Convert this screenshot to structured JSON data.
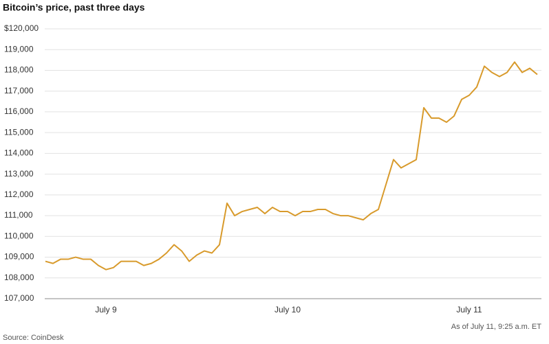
{
  "chart_data": {
    "type": "line",
    "title": "Bitcoin’s price, past three days",
    "note": "As of July 11, 9:25 a.m. ET",
    "source": "Source: CoinDesk",
    "categories": [
      null,
      null,
      null,
      null,
      null,
      null,
      null,
      null,
      "July 9",
      null,
      null,
      null,
      null,
      null,
      null,
      null,
      null,
      null,
      null,
      null,
      null,
      null,
      null,
      null,
      null,
      null,
      null,
      null,
      null,
      null,
      null,
      null,
      "July 10",
      null,
      null,
      null,
      null,
      null,
      null,
      null,
      null,
      null,
      null,
      null,
      null,
      null,
      null,
      null,
      null,
      null,
      null,
      null,
      null,
      null,
      null,
      null,
      "July 11",
      null,
      null,
      null,
      null,
      null,
      null,
      null,
      null,
      null
    ],
    "series": [
      {
        "name": "Bitcoin",
        "color": "#d89a2b",
        "values": [
          108800,
          108700,
          108900,
          108900,
          109000,
          108900,
          108900,
          108600,
          108400,
          108500,
          108800,
          108800,
          108800,
          108600,
          108700,
          108900,
          109200,
          109600,
          109300,
          108800,
          109100,
          109300,
          109200,
          109600,
          111600,
          111000,
          111200,
          111300,
          111400,
          111100,
          111400,
          111200,
          111200,
          111000,
          111200,
          111200,
          111300,
          111300,
          111100,
          111000,
          111000,
          110900,
          110800,
          111100,
          111300,
          112500,
          113700,
          113300,
          113500,
          113700,
          116200,
          115700,
          115700,
          115500,
          115800,
          116600,
          116800,
          117200,
          118200,
          117900,
          117700,
          117900,
          118400,
          117900,
          118100,
          117800
        ]
      }
    ],
    "ylim": [
      107000,
      120000
    ],
    "yticks": [
      {
        "value": 107000,
        "label": "107,000"
      },
      {
        "value": 108000,
        "label": "108,000"
      },
      {
        "value": 109000,
        "label": "109,000"
      },
      {
        "value": 110000,
        "label": "110,000"
      },
      {
        "value": 111000,
        "label": "111,000"
      },
      {
        "value": 112000,
        "label": "112,000"
      },
      {
        "value": 113000,
        "label": "113,000"
      },
      {
        "value": 114000,
        "label": "114,000"
      },
      {
        "value": 115000,
        "label": "115,000"
      },
      {
        "value": 116000,
        "label": "116,000"
      },
      {
        "value": 117000,
        "label": "117,000"
      },
      {
        "value": 118000,
        "label": "118,000"
      },
      {
        "value": 119000,
        "label": "119,000"
      },
      {
        "value": 120000,
        "label": "$120,000"
      }
    ],
    "grid": true
  }
}
